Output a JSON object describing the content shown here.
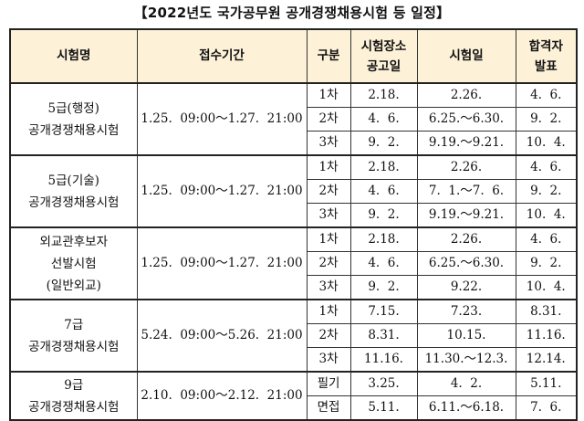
{
  "title": "【2022년도 국가공무원 공개경쟁채용시험 등 일정】",
  "headers": {
    "exam": "시험명",
    "period": "접수기간",
    "type": "구분",
    "notice_l1": "시험장소",
    "notice_l2": "공고일",
    "date": "시험일",
    "result_l1": "합격자",
    "result_l2": "발표"
  },
  "groups": [
    {
      "name": [
        "5급(행정)",
        "공개경쟁채용시험"
      ],
      "period": "1.25.  09:00～1.27.  21:00",
      "rows": [
        {
          "type": "1차",
          "notice": "2.18.",
          "date": "2.26.",
          "result": "4.  6."
        },
        {
          "type": "2차",
          "notice": "4.  6.",
          "date": "6.25.～6.30.",
          "result": "9.  2."
        },
        {
          "type": "3차",
          "notice": "9.  2.",
          "date": "9.19.～9.21.",
          "result": "10.  4."
        }
      ]
    },
    {
      "name": [
        "5급(기술)",
        "공개경쟁채용시험"
      ],
      "period": "1.25.  09:00～1.27.  21:00",
      "rows": [
        {
          "type": "1차",
          "notice": "2.18.",
          "date": "2.26.",
          "result": "4.  6."
        },
        {
          "type": "2차",
          "notice": "4.  6.",
          "date": "7.  1.～7.  6.",
          "result": "9.  2."
        },
        {
          "type": "3차",
          "notice": "9.  2.",
          "date": "9.19.～9.21.",
          "result": "10.  4."
        }
      ]
    },
    {
      "name": [
        "외교관후보자",
        "선발시험",
        "(일반외교)"
      ],
      "period": "1.25.  09:00～1.27.  21:00",
      "rows": [
        {
          "type": "1차",
          "notice": "2.18.",
          "date": "2.26.",
          "result": "4.  6."
        },
        {
          "type": "2차",
          "notice": "4.  6.",
          "date": "6.25.～6.30.",
          "result": "9.  2."
        },
        {
          "type": "3차",
          "notice": "9.  2.",
          "date": "9.22.",
          "result": "10.  4."
        }
      ]
    },
    {
      "name": [
        "7급",
        "공개경쟁채용시험"
      ],
      "period": "5.24.  09:00～5.26.  21:00",
      "rows": [
        {
          "type": "1차",
          "notice": "7.15.",
          "date": "7.23.",
          "result": "8.31."
        },
        {
          "type": "2차",
          "notice": "8.31.",
          "date": "10.15.",
          "result": "11.16."
        },
        {
          "type": "3차",
          "notice": "11.16.",
          "date": "11.30.～12.3.",
          "result": "12.14."
        }
      ]
    },
    {
      "name": [
        "9급",
        "공개경쟁채용시험"
      ],
      "period": "2.10.  09:00～2.12.  21:00",
      "rows": [
        {
          "type": "필기",
          "notice": "3.25.",
          "date": "4.  2.",
          "result": "5.11."
        },
        {
          "type": "면접",
          "notice": "5.11.",
          "date": "6.11.～6.18.",
          "result": "7.  6."
        }
      ]
    }
  ]
}
